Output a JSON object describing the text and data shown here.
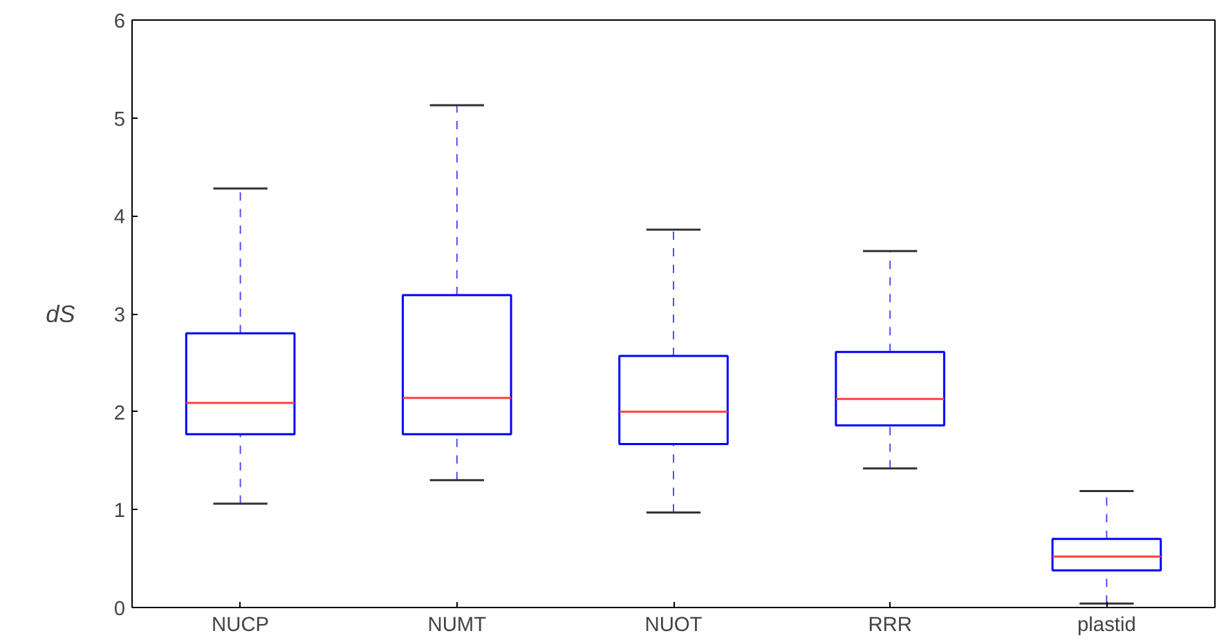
{
  "chart_data": {
    "type": "box",
    "ylabel": "dS",
    "categories": [
      "NUCP",
      "NUMT",
      "NUOT",
      "RRR",
      "plastid"
    ],
    "series": [
      {
        "color": "#0000ff",
        "boxes": [
          {
            "low": 1.06,
            "q1": 1.77,
            "median": 2.09,
            "q3": 2.8,
            "high": 4.28
          },
          {
            "low": 1.3,
            "q1": 1.77,
            "median": 2.14,
            "q3": 3.19,
            "high": 5.13
          },
          {
            "low": 0.97,
            "q1": 1.67,
            "median": 2.0,
            "q3": 2.57,
            "high": 3.86
          },
          {
            "low": 1.42,
            "q1": 1.86,
            "median": 2.13,
            "q3": 2.61,
            "high": 3.64
          },
          {
            "low": 0.04,
            "q1": 0.38,
            "median": 0.52,
            "q3": 0.7,
            "high": 1.19
          }
        ]
      }
    ],
    "ylim": [
      0,
      6
    ],
    "yticks": [
      0,
      1,
      2,
      3,
      4,
      5,
      6
    ],
    "grid": false
  }
}
